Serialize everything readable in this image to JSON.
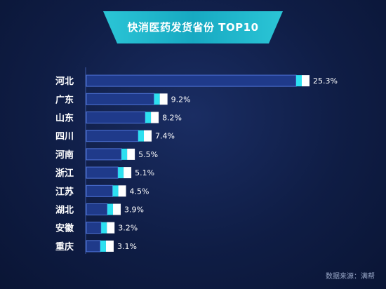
{
  "title": "快消医药发货省份 TOP10",
  "source": "数据来源：满帮",
  "colors": {
    "bar_fill": "#1f3a8a",
    "bar_border": "#4f74d8",
    "cap_cyan": "#2de0f0",
    "cap_white": "#ffffff",
    "axis": "#3e5aa6",
    "text": "#ffffff"
  },
  "chart_data": {
    "type": "bar",
    "orientation": "horizontal",
    "categories": [
      "河北",
      "广东",
      "山东",
      "四川",
      "河南",
      "浙江",
      "江苏",
      "湖北",
      "安徽",
      "重庆"
    ],
    "values": [
      25.3,
      9.2,
      8.2,
      7.4,
      5.5,
      5.1,
      4.5,
      3.9,
      3.2,
      3.1
    ],
    "value_labels": [
      "25.3%",
      "9.2%",
      "8.2%",
      "7.4%",
      "5.5%",
      "5.1%",
      "4.5%",
      "3.9%",
      "3.2%",
      "3.1%"
    ],
    "title": "快消医药发货省份 TOP10",
    "xlabel": "",
    "ylabel": "",
    "grid": false
  }
}
